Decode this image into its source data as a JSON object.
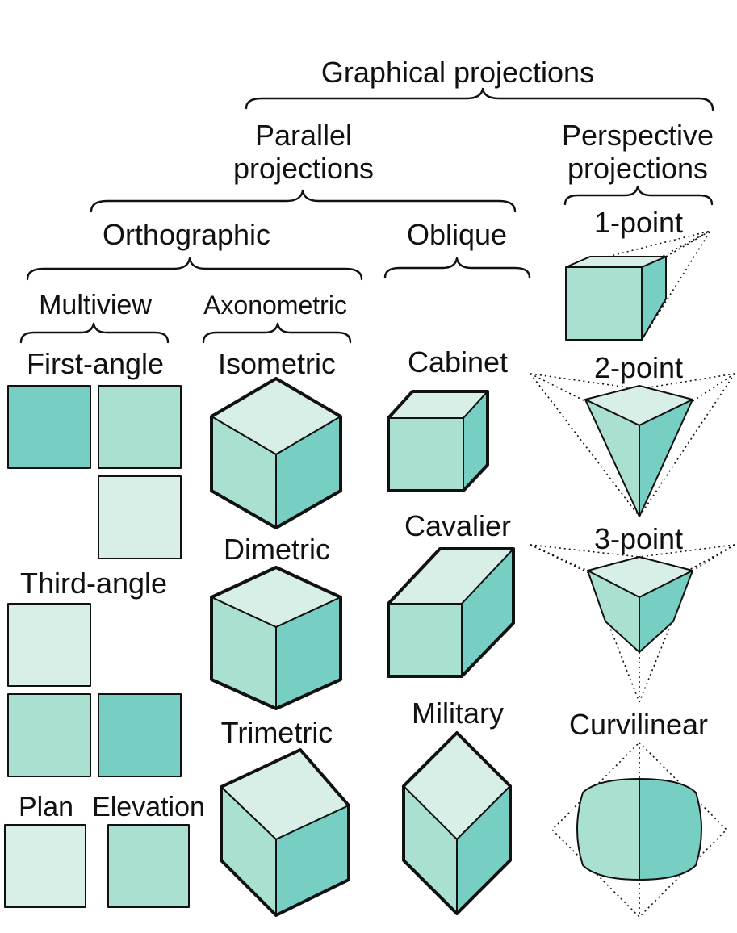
{
  "colors": {
    "light": "#d7efe7",
    "mid": "#a9e0d2",
    "dark": "#76cfc2",
    "stroke": "#111111"
  },
  "labels": {
    "graphical_projections": "Graphical projections",
    "parallel_line1": "Parallel",
    "parallel_line2": "projections",
    "perspective_line1": "Perspective",
    "perspective_line2": "projections",
    "orthographic": "Orthographic",
    "oblique": "Oblique",
    "multiview": "Multiview",
    "axonometric": "Axonometric",
    "first_angle": "First-angle",
    "third_angle": "Third-angle",
    "plan": "Plan",
    "elevation": "Elevation",
    "isometric": "Isometric",
    "dimetric": "Dimetric",
    "trimetric": "Trimetric",
    "cabinet": "Cabinet",
    "cavalier": "Cavalier",
    "military": "Military",
    "one_point": "1-point",
    "two_point": "2-point",
    "three_point": "3-point",
    "curvilinear": "Curvilinear"
  },
  "icons": [
    "multiview-square",
    "isometric-cube",
    "dimetric-cube",
    "trimetric-cube",
    "cabinet-box",
    "cavalier-box",
    "military-box",
    "one-point-box",
    "two-point-box",
    "three-point-box",
    "curvilinear-sphere"
  ]
}
